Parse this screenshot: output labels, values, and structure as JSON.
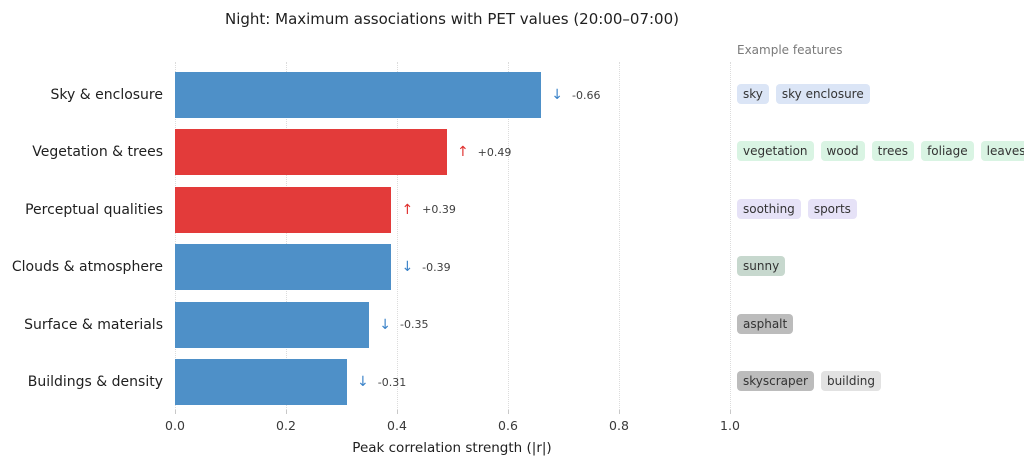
{
  "chart_data": {
    "type": "bar",
    "orientation": "horizontal",
    "title": "Night: Maximum associations with PET values (20:00–07:00)",
    "xlabel": "Peak correlation strength (|r|)",
    "xlim": [
      0,
      1.0
    ],
    "xtick_labels": [
      "0.0",
      "0.2",
      "0.4",
      "0.6",
      "0.8",
      "1.0"
    ],
    "xtick_values": [
      0,
      0.2,
      0.4,
      0.6,
      0.8,
      1.0
    ],
    "grid": "vertical-dotted",
    "legend_position": "right-panel",
    "side_panel_title": "Example features",
    "palette": {
      "negative_bar": "#4e90c8",
      "positive_bar": "#e33b3a",
      "negative_arrow": "#3b83c9",
      "positive_arrow": "#e0302e"
    },
    "rows": [
      {
        "category": "Sky & enclosure",
        "value": -0.66,
        "magnitude": 0.66,
        "value_label": "-0.66",
        "direction": "down",
        "arrow_glyph": "↓",
        "tags": [
          {
            "label": "sky",
            "bg": "#dbe5f6"
          },
          {
            "label": "sky enclosure",
            "bg": "#dbe5f6"
          }
        ]
      },
      {
        "category": "Vegetation & trees",
        "value": 0.49,
        "magnitude": 0.49,
        "value_label": "+0.49",
        "direction": "up",
        "arrow_glyph": "↑",
        "tags": [
          {
            "label": "vegetation",
            "bg": "#d9f4e3"
          },
          {
            "label": "wood",
            "bg": "#d9f4e3"
          },
          {
            "label": "trees",
            "bg": "#d9f4e3"
          },
          {
            "label": "foliage",
            "bg": "#d9f4e3"
          },
          {
            "label": "leaves",
            "bg": "#d9f4e3"
          }
        ]
      },
      {
        "category": "Perceptual qualities",
        "value": 0.39,
        "magnitude": 0.39,
        "value_label": "+0.39",
        "direction": "up",
        "arrow_glyph": "↑",
        "tags": [
          {
            "label": "soothing",
            "bg": "#e6e2f7"
          },
          {
            "label": "sports",
            "bg": "#e6e2f7"
          }
        ]
      },
      {
        "category": "Clouds & atmosphere",
        "value": -0.39,
        "magnitude": 0.39,
        "value_label": "-0.39",
        "direction": "down",
        "arrow_glyph": "↓",
        "tags": [
          {
            "label": "sunny",
            "bg": "#c7d8ce"
          }
        ]
      },
      {
        "category": "Surface & materials",
        "value": -0.35,
        "magnitude": 0.35,
        "value_label": "-0.35",
        "direction": "down",
        "arrow_glyph": "↓",
        "tags": [
          {
            "label": "asphalt",
            "bg": "#bcbcbc"
          }
        ]
      },
      {
        "category": "Buildings & density",
        "value": -0.31,
        "magnitude": 0.31,
        "value_label": "-0.31",
        "direction": "down",
        "arrow_glyph": "↓",
        "tags": [
          {
            "label": "skyscraper",
            "bg": "#bcbcbc"
          },
          {
            "label": "building",
            "bg": "#e2e2e2"
          }
        ]
      }
    ]
  }
}
